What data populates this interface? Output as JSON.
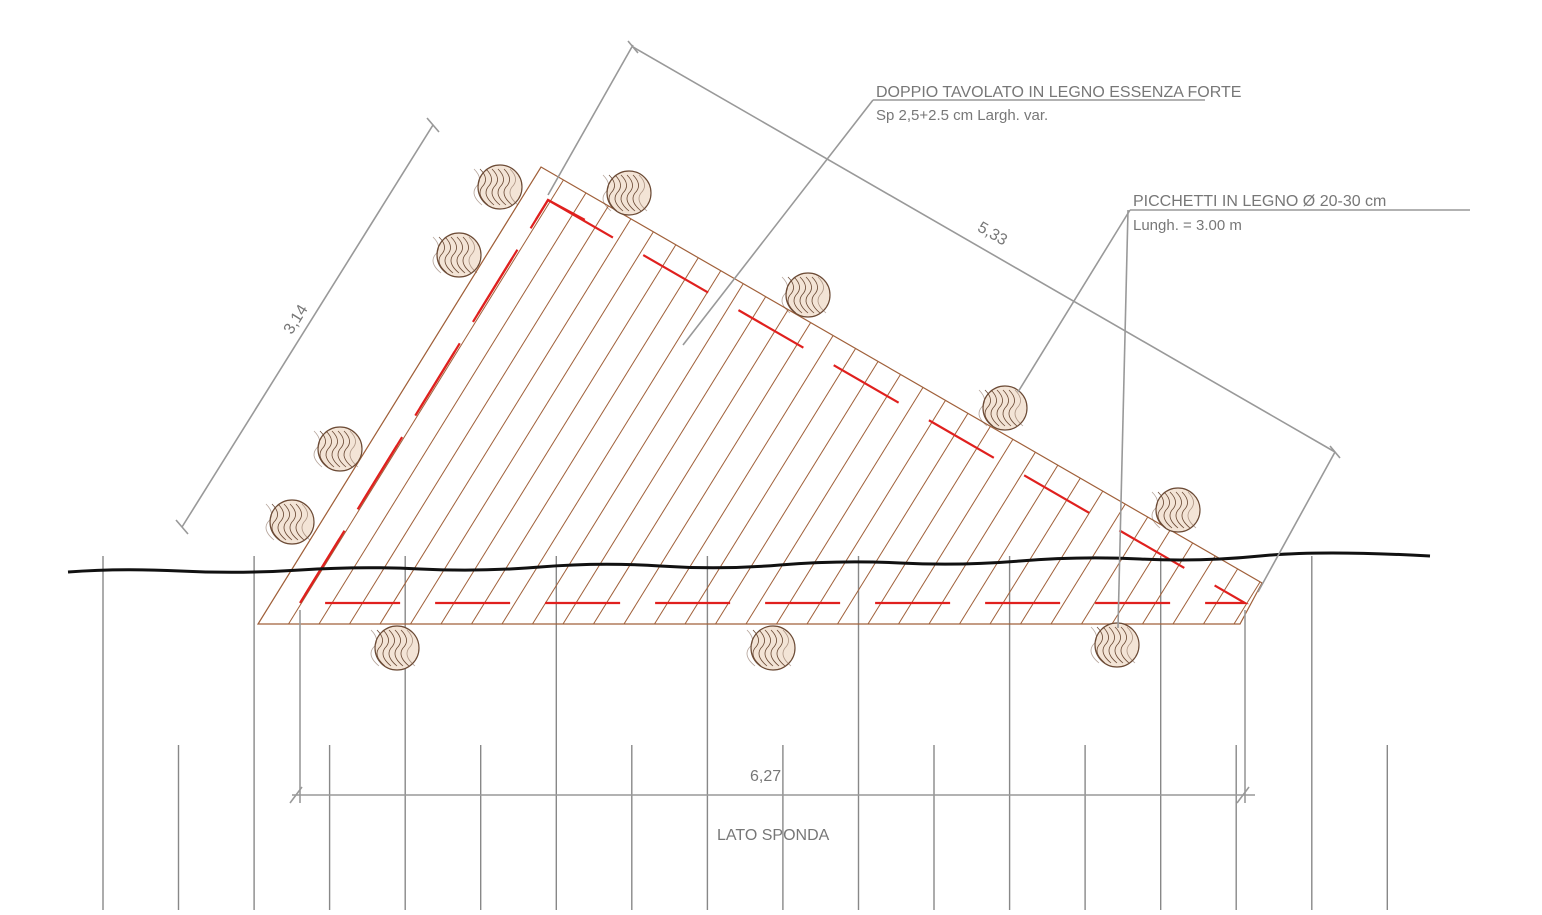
{
  "labels": {
    "decking": "DOPPIO TAVOLATO IN LEGNO ESSENZA FORTE",
    "decking_spec": "Sp 2,5+2.5 cm Largh. var.",
    "stakes": "PICCHETTI IN LEGNO Ø 20-30 cm",
    "stakes_spec": "Lungh. = 3.00 m",
    "bank_side": "LATO SPONDA"
  },
  "dimensions": {
    "diagonal": "5,33",
    "side": "3,14",
    "base": "6,27"
  }
}
